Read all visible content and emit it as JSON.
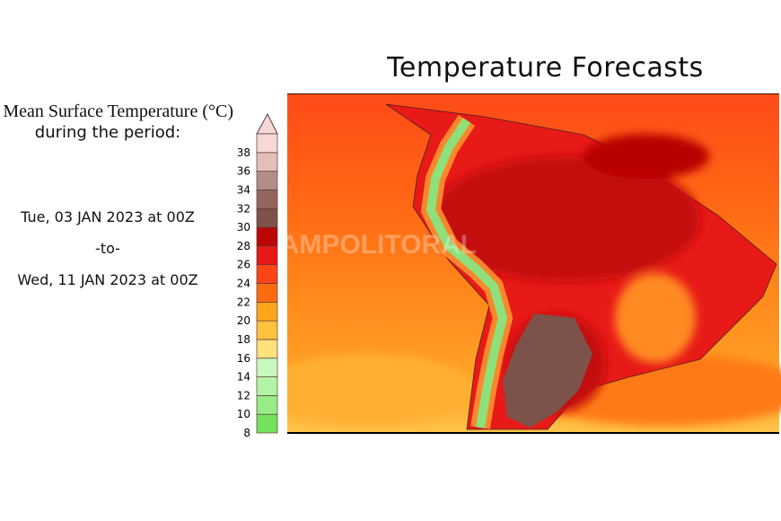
{
  "title": "Temperature Forecasts",
  "subtitle_line1": "Mean Surface Temperature (°C)",
  "subtitle_line2": "during the period:",
  "period_start": "Tue, 03 JAN 2023 at 00Z",
  "period_separator": "-to-",
  "period_end": "Wed, 11 JAN 2023 at 00Z",
  "watermark": "CAMPOLITORAL",
  "colorbar": {
    "unit": "°C",
    "ticks": [
      "8",
      "10",
      "12",
      "14",
      "16",
      "18",
      "20",
      "22",
      "24",
      "26",
      "28",
      "30",
      "32",
      "34",
      "36",
      "38"
    ],
    "colors": [
      "#74e25e",
      "#98ec86",
      "#b3f3a6",
      "#c9f8bc",
      "#ffe27a",
      "#ffc23e",
      "#ffa61a",
      "#ff6c10",
      "#ff4418",
      "#e81a18",
      "#bc0606",
      "#7c524a",
      "#936660",
      "#b38e88",
      "#e2bfb8",
      "#f6d8d6"
    ]
  },
  "map_colors": {
    "ocean_north": "#ff4a18",
    "ocean_mid": "#ff8a1c",
    "ocean_south": "#ffb234",
    "land_hot": "#d21010",
    "andes": "#8ee07a",
    "argentina": "#7c524a"
  }
}
